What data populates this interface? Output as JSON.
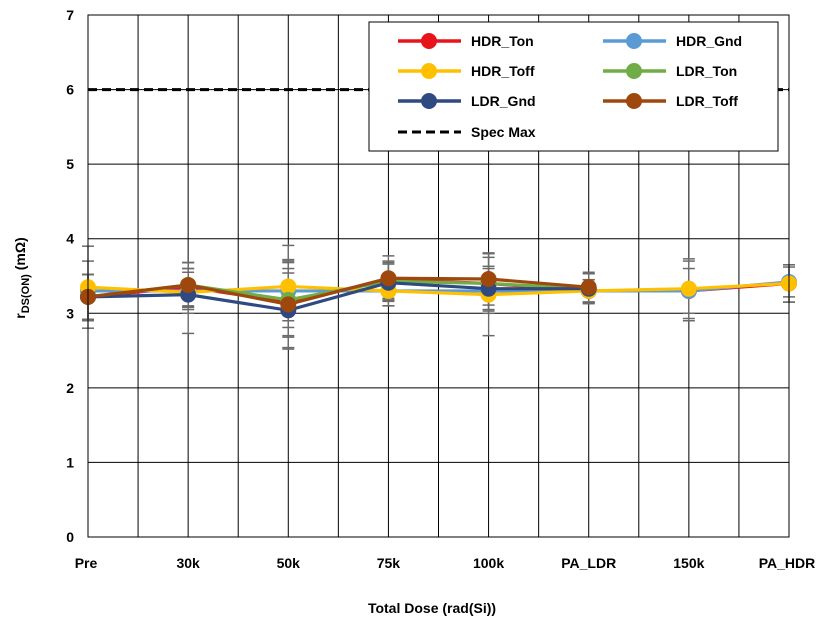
{
  "chart_data": {
    "type": "line",
    "xlabel": "Total Dose (rad(Si))",
    "ylabel_main": "r",
    "ylabel_sub": "DS(ON)",
    "ylabel_unit": " (mΩ)",
    "categories": [
      "Pre",
      "30k",
      "50k",
      "75k",
      "100k",
      "PA_LDR",
      "150k",
      "PA_HDR"
    ],
    "ylim": [
      0,
      7
    ],
    "yticks": [
      "0",
      "1",
      "2",
      "3",
      "4",
      "5",
      "6",
      "7"
    ],
    "grid": true,
    "legend_position": "top-right",
    "spec_max": {
      "name": "Spec Max",
      "value": 6,
      "color": "#000000",
      "style": "dashed"
    },
    "series": [
      {
        "name": "HDR_Ton",
        "color": "#e8141c",
        "values": [
          3.22,
          3.35,
          3.15,
          3.45,
          3.4,
          3.3,
          3.3,
          3.4
        ],
        "err_low": [
          0.3,
          0.25,
          0.45,
          0.25,
          0.4,
          0.15,
          0.4,
          0.25
        ],
        "err_high": [
          0.3,
          0.25,
          0.45,
          0.25,
          0.4,
          0.15,
          0.4,
          0.25
        ]
      },
      {
        "name": "HDR_Gnd",
        "color": "#5b9bd5",
        "values": [
          3.3,
          3.3,
          3.3,
          3.3,
          3.3,
          3.3,
          3.3,
          3.42
        ],
        "err_low": [
          0.4,
          0.3,
          0.4,
          0.2,
          0.3,
          0.15,
          0.3,
          0.2
        ],
        "err_high": [
          0.4,
          0.3,
          0.4,
          0.2,
          0.3,
          0.15,
          0.3,
          0.2
        ]
      },
      {
        "name": "HDR_Toff",
        "color": "#ffc000",
        "values": [
          3.35,
          3.28,
          3.36,
          3.3,
          3.25,
          3.3,
          3.33,
          3.4
        ],
        "err_low": [
          0.55,
          0.55,
          0.55,
          0.2,
          0.55,
          0.15,
          0.4,
          0.25
        ],
        "err_high": [
          0.55,
          0.4,
          0.55,
          0.2,
          0.55,
          0.15,
          0.4,
          0.25
        ]
      },
      {
        "name": "LDR_Ton",
        "color": "#70ad47",
        "values": [
          3.22,
          3.38,
          3.18,
          3.43,
          3.4,
          3.33,
          3.3,
          3.4
        ],
        "err_low": [
          0.3,
          0.3,
          0.5,
          0.25,
          0.35,
          0.2,
          0.4,
          0.25
        ],
        "err_high": [
          0.3,
          0.3,
          0.5,
          0.25,
          0.35,
          0.2,
          0.4,
          0.25
        ]
      },
      {
        "name": "LDR_Gnd",
        "color": "#2f4a80",
        "values": [
          3.22,
          3.25,
          3.04,
          3.41,
          3.33,
          3.33,
          3.3,
          3.4
        ],
        "err_low": [
          0.3,
          0.2,
          0.5,
          0.25,
          0.3,
          0.2,
          0.4,
          0.25
        ],
        "err_high": [
          0.3,
          0.3,
          0.5,
          0.25,
          0.3,
          0.2,
          0.4,
          0.25
        ]
      },
      {
        "name": "LDR_Toff",
        "color": "#9e480e",
        "values": [
          3.22,
          3.38,
          3.12,
          3.47,
          3.46,
          3.35,
          3.3,
          3.4
        ],
        "err_low": [
          0.3,
          0.3,
          0.6,
          0.3,
          0.35,
          0.2,
          0.4,
          0.25
        ],
        "err_high": [
          0.3,
          0.3,
          0.6,
          0.3,
          0.35,
          0.2,
          0.4,
          0.25
        ]
      }
    ],
    "series_visible_points": {
      "HDR_Ton": [
        0,
        1,
        2,
        3,
        4,
        5,
        6,
        7
      ],
      "HDR_Gnd": [
        0,
        1,
        2,
        3,
        4,
        5,
        6,
        7
      ],
      "HDR_Toff": [
        0,
        1,
        2,
        3,
        4,
        5,
        6,
        7
      ],
      "LDR_Ton": [
        0,
        1,
        2,
        3,
        4,
        5
      ],
      "LDR_Gnd": [
        0,
        1,
        2,
        3,
        4,
        5
      ],
      "LDR_Toff": [
        0,
        1,
        2,
        3,
        4,
        5
      ]
    }
  }
}
